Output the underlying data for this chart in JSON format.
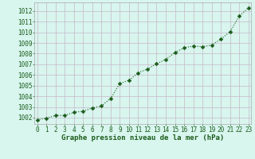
{
  "x": [
    0,
    1,
    2,
    3,
    4,
    5,
    6,
    7,
    8,
    9,
    10,
    11,
    12,
    13,
    14,
    15,
    16,
    17,
    18,
    19,
    20,
    21,
    22,
    23
  ],
  "y": [
    1001.8,
    1001.95,
    1002.2,
    1002.2,
    1002.5,
    1002.6,
    1002.9,
    1003.1,
    1003.8,
    1005.2,
    1005.5,
    1006.2,
    1006.55,
    1007.05,
    1007.45,
    1008.1,
    1008.55,
    1008.7,
    1008.65,
    1008.8,
    1009.35,
    1010.05,
    1011.5,
    1012.3
  ],
  "line_color": "#1a5c1a",
  "marker": "D",
  "marker_size": 2.5,
  "line_width": 0.8,
  "line_style": "dotted",
  "bg_color": "#d8f5ee",
  "grid_color": "#c8b8c8",
  "xlabel": "Graphe pression niveau de la mer (hPa)",
  "xlabel_color": "#1a5c1a",
  "xlabel_fontsize": 6.5,
  "xlabel_bold": true,
  "ytick_labels": [
    1002,
    1003,
    1004,
    1005,
    1006,
    1007,
    1008,
    1009,
    1010,
    1011,
    1012
  ],
  "ylim": [
    1001.4,
    1012.8
  ],
  "xlim": [
    -0.3,
    23.3
  ],
  "tick_fontsize": 5.5,
  "tick_color": "#1a5c1a",
  "spine_color": "#aaaaaa"
}
